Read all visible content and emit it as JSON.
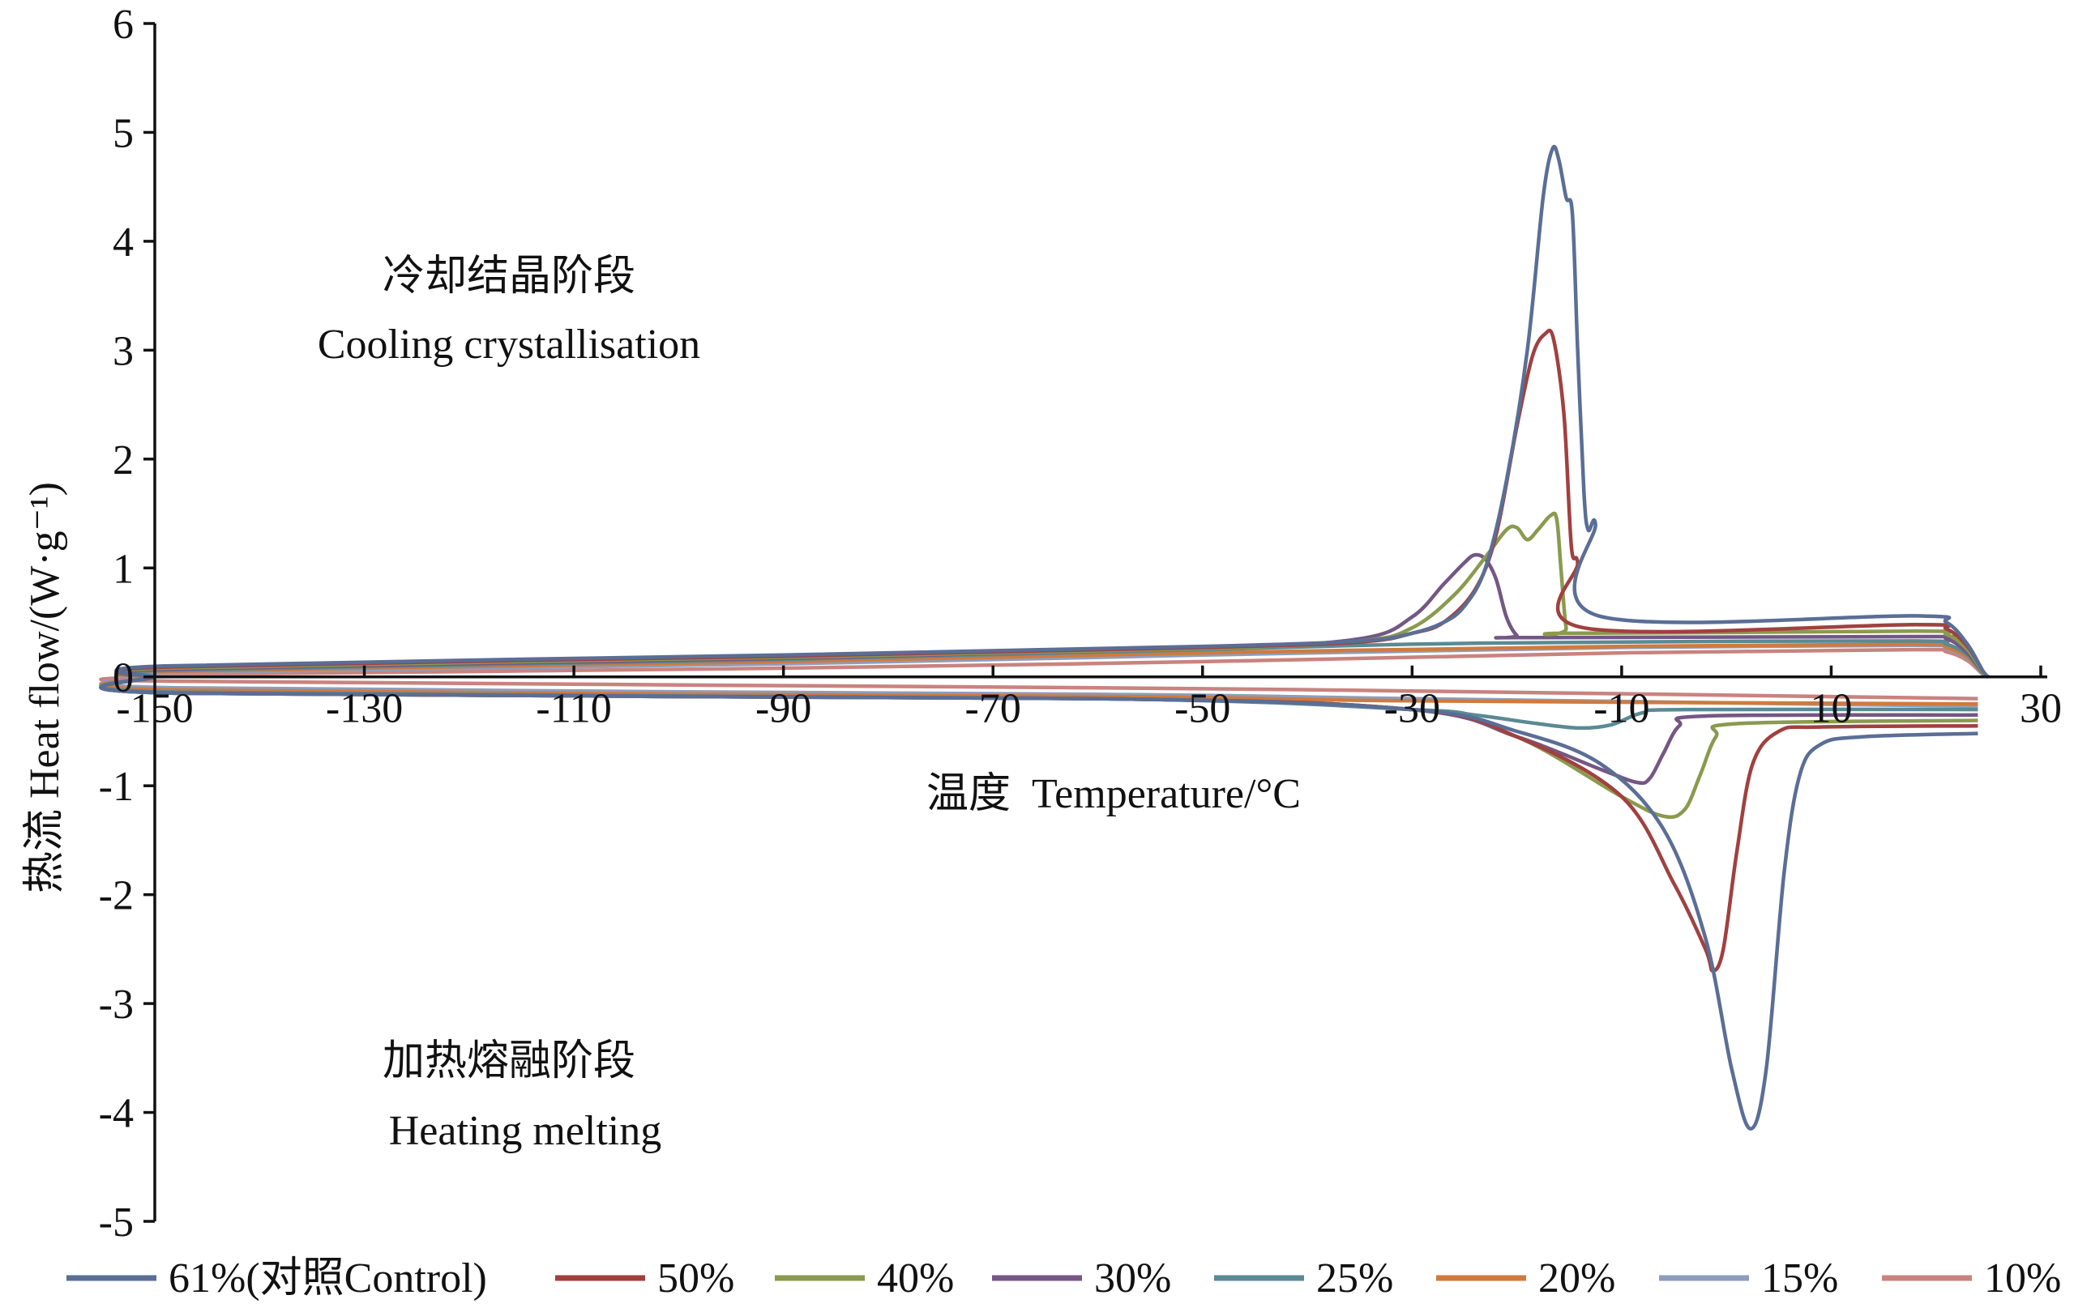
{
  "chart_data": {
    "type": "line",
    "title": "",
    "xlabel": "温度  Temperature/°C",
    "ylabel": "热流 Heat flow/(W·g⁻¹)",
    "xlim": [
      -150,
      30
    ],
    "ylim": [
      -5,
      6
    ],
    "xticks": [
      -150,
      -130,
      -110,
      -90,
      -70,
      -50,
      -30,
      -10,
      10,
      30
    ],
    "xtick_labels": [
      "-150",
      "-130",
      "-110",
      "-90",
      "-70",
      "-50",
      "-30",
      "-10",
      "10",
      "30"
    ],
    "yticks": [
      6,
      5,
      4,
      3,
      2,
      1,
      0,
      -1,
      -2,
      -3,
      -4,
      -5
    ],
    "ytick_labels": [
      "6",
      "5",
      "4",
      "3",
      "2",
      "1",
      "0",
      "-1",
      "-2",
      "-3",
      "-4",
      "-5"
    ],
    "grid": false,
    "legend_placement": "bottom",
    "annotations": {
      "cooling_cn": "冷却结晶阶段",
      "cooling_en": "Cooling crystallisation",
      "heating_cn": "加热熔融阶段",
      "heating_en": "Heating melting"
    },
    "series": [
      {
        "name": "61%(对照Control)",
        "color": "#5a6e96",
        "cooling": [
          [
            -150,
            0
          ],
          [
            -149,
            0.1
          ],
          [
            -90,
            0.2
          ],
          [
            -50,
            0.28
          ],
          [
            -35,
            0.33
          ],
          [
            -30,
            0.4
          ],
          [
            -27,
            0.5
          ],
          [
            -25,
            0.65
          ],
          [
            -23,
            1.0
          ],
          [
            -21,
            1.8
          ],
          [
            -19,
            3.0
          ],
          [
            -17.5,
            4.4
          ],
          [
            -16.6,
            4.85
          ],
          [
            -16,
            4.75
          ],
          [
            -15.3,
            4.4
          ],
          [
            -14.7,
            4.25
          ],
          [
            -14.2,
            3.0
          ],
          [
            -13.6,
            1.7
          ],
          [
            -13.2,
            1.35
          ],
          [
            -12.5,
            1.4
          ],
          [
            -12.2,
            0.56
          ],
          [
            18,
            0.56
          ],
          [
            21,
            0.5
          ],
          [
            23,
            0.3
          ],
          [
            24.5,
            0.05
          ],
          [
            25,
            0
          ]
        ],
        "heating": [
          [
            -150,
            0
          ],
          [
            -148,
            -0.15
          ],
          [
            -60,
            -0.2
          ],
          [
            -30,
            -0.3
          ],
          [
            -20,
            -0.5
          ],
          [
            -12,
            -0.8
          ],
          [
            -6,
            -1.4
          ],
          [
            -2,
            -2.4
          ],
          [
            0.5,
            -3.6
          ],
          [
            2.3,
            -4.15
          ],
          [
            3.8,
            -3.6
          ],
          [
            5.5,
            -1.8
          ],
          [
            7,
            -0.9
          ],
          [
            9,
            -0.62
          ],
          [
            13,
            -0.55
          ],
          [
            24,
            -0.52
          ]
        ]
      },
      {
        "name": "50%",
        "color": "#a0413f",
        "cooling": [
          [
            -150,
            0
          ],
          [
            -149,
            0.09
          ],
          [
            -90,
            0.19
          ],
          [
            -50,
            0.27
          ],
          [
            -35,
            0.32
          ],
          [
            -30,
            0.4
          ],
          [
            -27,
            0.5
          ],
          [
            -24,
            0.8
          ],
          [
            -22,
            1.3
          ],
          [
            -20,
            2.3
          ],
          [
            -18.5,
            2.95
          ],
          [
            -17.3,
            3.15
          ],
          [
            -16.5,
            3.1
          ],
          [
            -15.5,
            2.4
          ],
          [
            -14.8,
            1.2
          ],
          [
            -14.2,
            1.05
          ],
          [
            -13.6,
            0.45
          ],
          [
            18,
            0.48
          ],
          [
            21,
            0.44
          ],
          [
            23,
            0.28
          ],
          [
            24.5,
            0.05
          ],
          [
            25,
            0
          ]
        ],
        "heating": [
          [
            -150,
            0
          ],
          [
            -148,
            -0.15
          ],
          [
            -60,
            -0.2
          ],
          [
            -30,
            -0.3
          ],
          [
            -20,
            -0.55
          ],
          [
            -10,
            -1.1
          ],
          [
            -5,
            -1.9
          ],
          [
            -2,
            -2.5
          ],
          [
            -1.3,
            -2.7
          ],
          [
            -0.3,
            -2.5
          ],
          [
            1,
            -1.6
          ],
          [
            2.5,
            -0.8
          ],
          [
            5,
            -0.5
          ],
          [
            9,
            -0.46
          ],
          [
            24,
            -0.45
          ]
        ]
      },
      {
        "name": "40%",
        "color": "#8a9a4e",
        "cooling": [
          [
            -150,
            0
          ],
          [
            -149,
            0.08
          ],
          [
            -90,
            0.18
          ],
          [
            -50,
            0.26
          ],
          [
            -35,
            0.33
          ],
          [
            -30,
            0.45
          ],
          [
            -26,
            0.75
          ],
          [
            -23,
            1.1
          ],
          [
            -21,
            1.35
          ],
          [
            -20,
            1.37
          ],
          [
            -19,
            1.26
          ],
          [
            -18,
            1.35
          ],
          [
            -16.8,
            1.48
          ],
          [
            -16.2,
            1.45
          ],
          [
            -15.8,
            1.0
          ],
          [
            -15.3,
            0.45
          ],
          [
            -14.8,
            0.4
          ],
          [
            18,
            0.42
          ],
          [
            21,
            0.39
          ],
          [
            23,
            0.25
          ],
          [
            24.5,
            0.04
          ],
          [
            25,
            0
          ]
        ],
        "heating": [
          [
            -150,
            0
          ],
          [
            -148,
            -0.15
          ],
          [
            -60,
            -0.2
          ],
          [
            -30,
            -0.3
          ],
          [
            -20,
            -0.55
          ],
          [
            -10,
            -1.1
          ],
          [
            -6,
            -1.28
          ],
          [
            -4,
            -1.22
          ],
          [
            -2.5,
            -0.9
          ],
          [
            -1,
            -0.55
          ],
          [
            1,
            -0.43
          ],
          [
            24,
            -0.4
          ]
        ]
      },
      {
        "name": "30%",
        "color": "#745784",
        "cooling": [
          [
            -150,
            0
          ],
          [
            -149,
            0.07
          ],
          [
            -90,
            0.17
          ],
          [
            -50,
            0.26
          ],
          [
            -35,
            0.35
          ],
          [
            -30,
            0.55
          ],
          [
            -27,
            0.85
          ],
          [
            -25,
            1.05
          ],
          [
            -24,
            1.12
          ],
          [
            -23,
            1.08
          ],
          [
            -22,
            0.9
          ],
          [
            -21,
            0.55
          ],
          [
            -20,
            0.38
          ],
          [
            -19,
            0.36
          ],
          [
            18,
            0.37
          ],
          [
            21,
            0.35
          ],
          [
            23,
            0.22
          ],
          [
            24.5,
            0.04
          ],
          [
            25,
            0
          ]
        ],
        "heating": [
          [
            -150,
            0
          ],
          [
            -148,
            -0.15
          ],
          [
            -60,
            -0.2
          ],
          [
            -30,
            -0.3
          ],
          [
            -20,
            -0.55
          ],
          [
            -12,
            -0.85
          ],
          [
            -8.5,
            -0.97
          ],
          [
            -7.3,
            -0.93
          ],
          [
            -6,
            -0.7
          ],
          [
            -4.5,
            -0.45
          ],
          [
            -2,
            -0.36
          ],
          [
            24,
            -0.35
          ]
        ]
      },
      {
        "name": "25%",
        "color": "#5a8a94",
        "cooling": [
          [
            -150,
            0
          ],
          [
            -149,
            0.06
          ],
          [
            -90,
            0.16
          ],
          [
            -50,
            0.25
          ],
          [
            -30,
            0.3
          ],
          [
            -10,
            0.32
          ],
          [
            18,
            0.33
          ],
          [
            21,
            0.3
          ],
          [
            23,
            0.2
          ],
          [
            24.5,
            0.03
          ],
          [
            25,
            0
          ]
        ],
        "heating": [
          [
            -150,
            0
          ],
          [
            -148,
            -0.14
          ],
          [
            -60,
            -0.2
          ],
          [
            -30,
            -0.3
          ],
          [
            -24,
            -0.35
          ],
          [
            -18,
            -0.43
          ],
          [
            -14,
            -0.47
          ],
          [
            -11,
            -0.44
          ],
          [
            -8,
            -0.33
          ],
          [
            -4,
            -0.3
          ],
          [
            24,
            -0.3
          ]
        ]
      },
      {
        "name": "20%",
        "color": "#d07a3e",
        "cooling": [
          [
            -150,
            0
          ],
          [
            -149,
            0.05
          ],
          [
            -90,
            0.14
          ],
          [
            -50,
            0.22
          ],
          [
            -10,
            0.28
          ],
          [
            18,
            0.3
          ],
          [
            21,
            0.27
          ],
          [
            23,
            0.18
          ],
          [
            24.5,
            0.03
          ],
          [
            25,
            0
          ]
        ],
        "heating": [
          [
            -150,
            0
          ],
          [
            -148,
            -0.12
          ],
          [
            -60,
            -0.18
          ],
          [
            -30,
            -0.22
          ],
          [
            24,
            -0.25
          ]
        ]
      },
      {
        "name": "15%",
        "color": "#8e9dbd",
        "cooling": [
          [
            -150,
            0
          ],
          [
            -149,
            0.04
          ],
          [
            -90,
            0.12
          ],
          [
            -50,
            0.2
          ],
          [
            -10,
            0.27
          ],
          [
            18,
            0.29
          ],
          [
            21,
            0.26
          ],
          [
            23,
            0.17
          ],
          [
            24.5,
            0.03
          ],
          [
            25,
            0
          ]
        ],
        "heating": [
          [
            -150,
            0
          ],
          [
            -148,
            -0.1
          ],
          [
            -60,
            -0.16
          ],
          [
            -30,
            -0.2
          ],
          [
            24,
            -0.27
          ]
        ]
      },
      {
        "name": "10%",
        "color": "#c9837f",
        "cooling": [
          [
            -150,
            0
          ],
          [
            -149,
            0.02
          ],
          [
            -90,
            0.08
          ],
          [
            -50,
            0.14
          ],
          [
            -10,
            0.22
          ],
          [
            18,
            0.25
          ],
          [
            21,
            0.23
          ],
          [
            23,
            0.15
          ],
          [
            24.5,
            0.02
          ],
          [
            25,
            0
          ]
        ],
        "heating": [
          [
            -150,
            0
          ],
          [
            -148,
            -0.04
          ],
          [
            -60,
            -0.1
          ],
          [
            -30,
            -0.13
          ],
          [
            24,
            -0.2
          ]
        ]
      }
    ]
  }
}
